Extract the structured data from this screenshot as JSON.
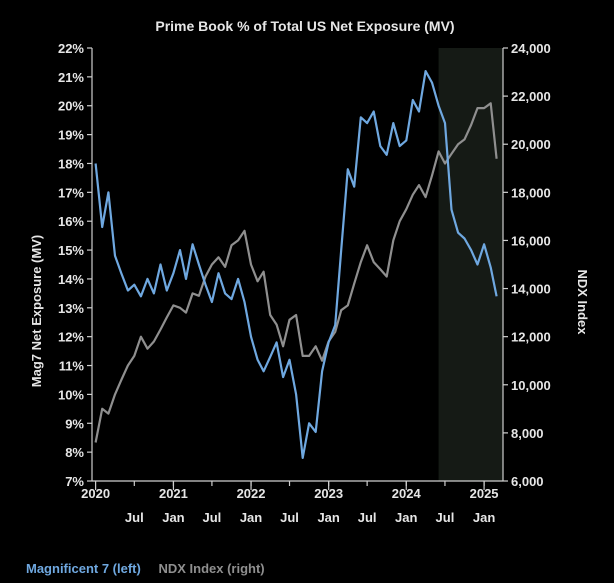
{
  "chart_data": {
    "type": "line",
    "title": "Prime Book % of Total US Net Exposure (MV)",
    "ylabel_left": "Mag7 Net Exposure (MV)",
    "ylabel_right": "NDX Index",
    "xlim": [
      "2019-12-15",
      "2025-03-31"
    ],
    "ylim_left": [
      7,
      22
    ],
    "ylim_right": [
      6000,
      24000
    ],
    "yticks_left": [
      "7%",
      "8%",
      "9%",
      "10%",
      "11%",
      "12%",
      "13%",
      "14%",
      "15%",
      "16%",
      "17%",
      "18%",
      "19%",
      "20%",
      "21%",
      "22%"
    ],
    "yticks_right": [
      "6,000",
      "8,000",
      "10,000",
      "12,000",
      "14,000",
      "16,000",
      "18,000",
      "20,000",
      "22,000",
      "24,000"
    ],
    "xticks_year": [
      {
        "label": "2020",
        "date": "2020-01-01"
      },
      {
        "label": "2021",
        "date": "2021-01-01"
      },
      {
        "label": "2022",
        "date": "2022-01-01"
      },
      {
        "label": "2023",
        "date": "2023-01-01"
      },
      {
        "label": "2024",
        "date": "2024-01-01"
      },
      {
        "label": "2025",
        "date": "2025-01-01"
      }
    ],
    "xticks_month": [
      {
        "label": "Jul",
        "date": "2020-07-01"
      },
      {
        "label": "Jan",
        "date": "2021-01-01"
      },
      {
        "label": "Jul",
        "date": "2021-07-01"
      },
      {
        "label": "Jan",
        "date": "2022-01-01"
      },
      {
        "label": "Jul",
        "date": "2022-07-01"
      },
      {
        "label": "Jan",
        "date": "2023-01-01"
      },
      {
        "label": "Jul",
        "date": "2023-07-01"
      },
      {
        "label": "Jan",
        "date": "2024-01-01"
      },
      {
        "label": "Jul",
        "date": "2024-07-01"
      },
      {
        "label": "Jan",
        "date": "2025-01-01"
      }
    ],
    "shaded_region": {
      "start": "2024-06-01",
      "end": "2025-03-31",
      "color": "#151a15"
    },
    "grid": false,
    "legend_position": "bottom-left",
    "series": [
      {
        "name": "Magnificent 7 (left)",
        "axis": "left",
        "color": "#6fa8e0",
        "x": [
          "2020-01-01",
          "2020-02-01",
          "2020-03-01",
          "2020-04-01",
          "2020-05-01",
          "2020-06-01",
          "2020-07-01",
          "2020-08-01",
          "2020-09-01",
          "2020-10-01",
          "2020-11-01",
          "2020-12-01",
          "2021-01-01",
          "2021-02-01",
          "2021-03-01",
          "2021-04-01",
          "2021-05-01",
          "2021-06-01",
          "2021-07-01",
          "2021-08-01",
          "2021-09-01",
          "2021-10-01",
          "2021-11-01",
          "2021-12-01",
          "2022-01-01",
          "2022-02-01",
          "2022-03-01",
          "2022-04-01",
          "2022-05-01",
          "2022-06-01",
          "2022-07-01",
          "2022-08-01",
          "2022-09-01",
          "2022-10-01",
          "2022-11-01",
          "2022-12-01",
          "2023-01-01",
          "2023-02-01",
          "2023-03-01",
          "2023-04-01",
          "2023-05-01",
          "2023-06-01",
          "2023-07-01",
          "2023-08-01",
          "2023-09-01",
          "2023-10-01",
          "2023-11-01",
          "2023-12-01",
          "2024-01-01",
          "2024-02-01",
          "2024-03-01",
          "2024-04-01",
          "2024-05-01",
          "2024-06-01",
          "2024-07-01",
          "2024-08-01",
          "2024-09-01",
          "2024-10-01",
          "2024-11-01",
          "2024-12-01",
          "2025-01-01",
          "2025-02-01",
          "2025-03-01"
        ],
        "values": [
          18.0,
          15.8,
          17.0,
          14.8,
          14.2,
          13.6,
          13.8,
          13.4,
          14.0,
          13.5,
          14.5,
          13.6,
          14.2,
          15.0,
          14.0,
          15.2,
          14.5,
          13.8,
          13.2,
          14.2,
          13.5,
          13.3,
          14.0,
          13.2,
          12.0,
          11.2,
          10.8,
          11.3,
          11.8,
          10.6,
          11.2,
          10.0,
          7.8,
          9.0,
          8.7,
          10.8,
          11.8,
          12.4,
          15.0,
          17.8,
          17.2,
          19.6,
          19.4,
          19.8,
          18.6,
          18.3,
          19.4,
          18.6,
          18.8,
          20.2,
          19.8,
          21.2,
          20.8,
          20.0,
          19.4,
          16.4,
          15.6,
          15.4,
          15.0,
          14.5,
          15.2,
          14.4,
          13.4
        ]
      },
      {
        "name": "NDX Index (right)",
        "axis": "right",
        "color": "#8f8f8f",
        "x": [
          "2020-01-01",
          "2020-02-01",
          "2020-03-01",
          "2020-04-01",
          "2020-05-01",
          "2020-06-01",
          "2020-07-01",
          "2020-08-01",
          "2020-09-01",
          "2020-10-01",
          "2020-11-01",
          "2020-12-01",
          "2021-01-01",
          "2021-02-01",
          "2021-03-01",
          "2021-04-01",
          "2021-05-01",
          "2021-06-01",
          "2021-07-01",
          "2021-08-01",
          "2021-09-01",
          "2021-10-01",
          "2021-11-01",
          "2021-12-01",
          "2022-01-01",
          "2022-02-01",
          "2022-03-01",
          "2022-04-01",
          "2022-05-01",
          "2022-06-01",
          "2022-07-01",
          "2022-08-01",
          "2022-09-01",
          "2022-10-01",
          "2022-11-01",
          "2022-12-01",
          "2023-01-01",
          "2023-02-01",
          "2023-03-01",
          "2023-04-01",
          "2023-05-01",
          "2023-06-01",
          "2023-07-01",
          "2023-08-01",
          "2023-09-01",
          "2023-10-01",
          "2023-11-01",
          "2023-12-01",
          "2024-01-01",
          "2024-02-01",
          "2024-03-01",
          "2024-04-01",
          "2024-05-01",
          "2024-06-01",
          "2024-07-01",
          "2024-08-01",
          "2024-09-01",
          "2024-10-01",
          "2024-11-01",
          "2024-12-01",
          "2025-01-01",
          "2025-02-01",
          "2025-03-01"
        ],
        "values": [
          7600,
          9000,
          8800,
          9600,
          10200,
          10800,
          11200,
          12000,
          11500,
          11800,
          12300,
          12800,
          13300,
          13200,
          13000,
          13800,
          13700,
          14500,
          15000,
          15300,
          14900,
          15800,
          16000,
          16400,
          15000,
          14300,
          14700,
          12900,
          12500,
          11600,
          12700,
          12900,
          11200,
          11200,
          11600,
          11000,
          11800,
          12200,
          13100,
          13300,
          14200,
          15100,
          15800,
          15100,
          14800,
          14500,
          16000,
          16800,
          17300,
          17900,
          18300,
          17800,
          18700,
          19700,
          19200,
          19600,
          20000,
          20200,
          20800,
          21500,
          21500,
          21700,
          19400
        ]
      }
    ]
  }
}
